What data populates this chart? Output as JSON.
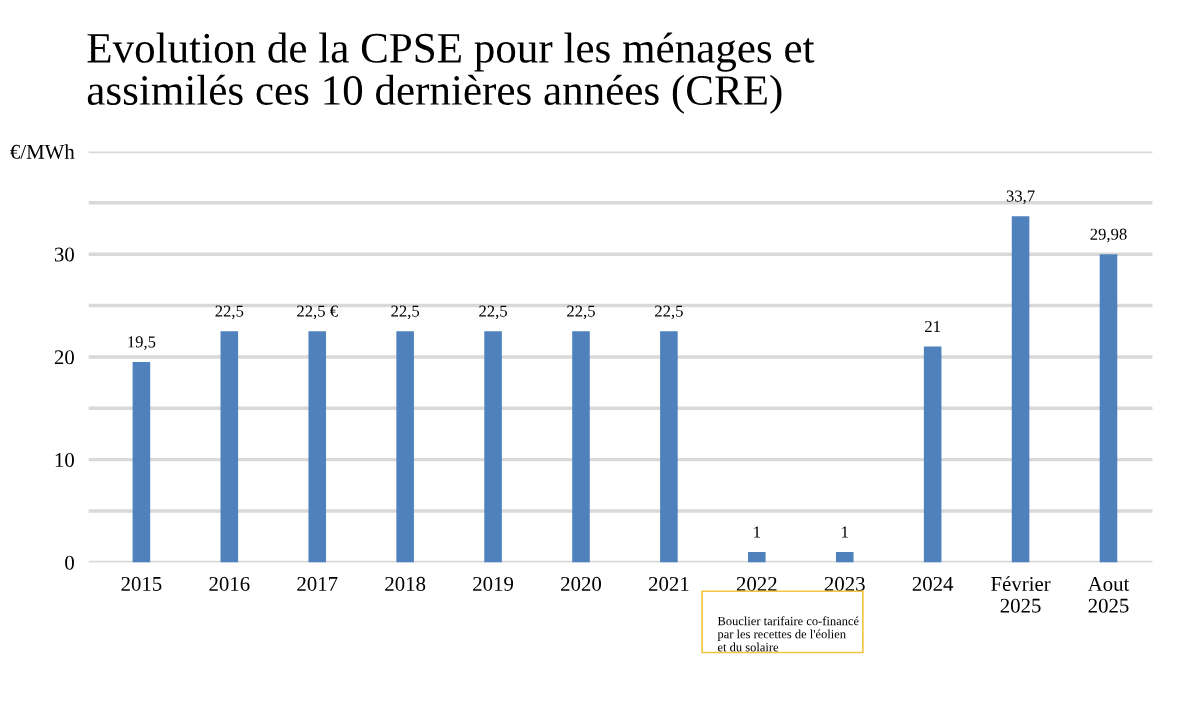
{
  "chart_data": {
    "type": "bar",
    "title": "Evolution de la CPSE pour les ménages et\nassimilés ces 10 dernières années (CRE)",
    "categories": [
      "2015",
      "2016",
      "2017",
      "2018",
      "2019",
      "2020",
      "2021",
      "2022",
      "2023",
      "2024",
      "Février\n2025",
      "Aout\n2025"
    ],
    "values": [
      19.5,
      22.5,
      22.5,
      22.5,
      22.5,
      22.5,
      22.5,
      1,
      1,
      21,
      33.7,
      29.98
    ],
    "value_labels": [
      "19,5",
      "22,5",
      "22,5 €",
      "22,5",
      "22,5",
      "22,5",
      "22,5",
      "1",
      "1",
      "21",
      "33,7",
      "29,98"
    ],
    "color": "#4f81bd",
    "ylim": [
      0,
      40
    ],
    "yticks": [
      0,
      {
        "value": 5,
        "label": null
      },
      10,
      {
        "value": 15,
        "label": null
      },
      20,
      {
        "value": 25,
        "label": null
      },
      30,
      {
        "value": 35,
        "label": null
      },
      {
        "value": 40,
        "label": "€/MWh"
      }
    ],
    "grid": "y",
    "annotations": [
      "Bouclier tarifaire co-financé\npar les recettes de l'éolien\net du solaire"
    ]
  }
}
